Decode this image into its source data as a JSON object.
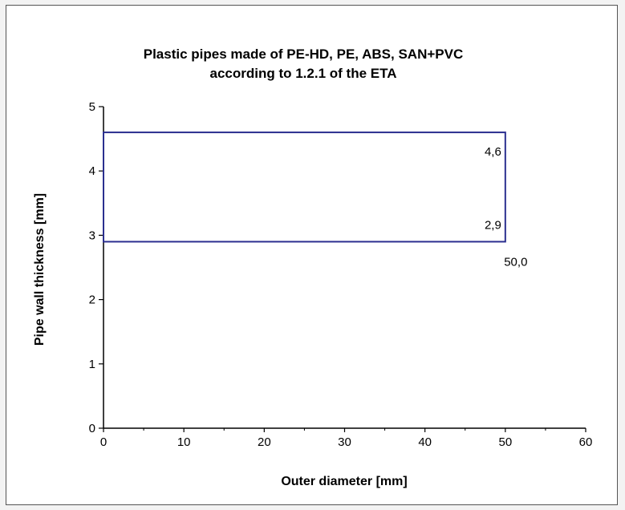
{
  "chart_data": {
    "type": "area",
    "title": [
      "Plastic pipes made of PE-HD, PE, ABS, SAN+PVC",
      "according to 1.2.1 of the ETA"
    ],
    "xlabel": "Outer diameter [mm]",
    "ylabel": "Pipe wall thickness [mm]",
    "xlim": [
      0,
      60
    ],
    "ylim": [
      0,
      5
    ],
    "x_ticks": [
      "0",
      "10",
      "20",
      "30",
      "40",
      "50",
      "60"
    ],
    "y_ticks": [
      "0",
      "1",
      "2",
      "3",
      "4",
      "5"
    ],
    "grid": false,
    "legend": "none",
    "region": {
      "x_min": 0,
      "x_max": 50.0,
      "y_min": 2.9,
      "y_max": 4.6,
      "color": "#2b2f8f"
    },
    "data_labels": [
      {
        "text": "4,6",
        "x": 50.0,
        "y": 4.6
      },
      {
        "text": "2,9",
        "x": 50.0,
        "y": 2.9
      },
      {
        "text": "50,0",
        "x": 50.0,
        "y": 2.9
      }
    ]
  }
}
